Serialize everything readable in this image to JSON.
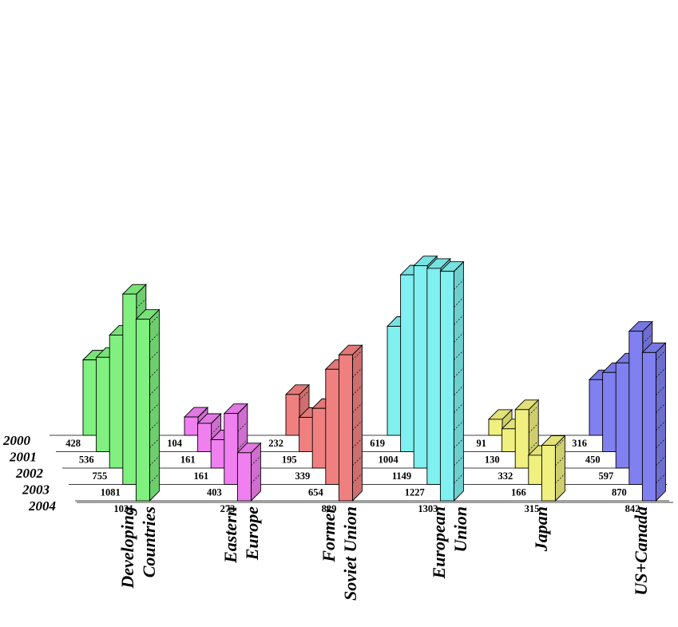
{
  "chart_data": {
    "type": "bar",
    "style": "3d-stacked-rows",
    "grid": true,
    "years": [
      "2000",
      "2001",
      "2002",
      "2003",
      "2004"
    ],
    "categories": [
      {
        "name": [
          "Developing",
          "Countries"
        ],
        "color": "#80f080",
        "values": [
          428,
          536,
          755,
          1081,
          1031
        ]
      },
      {
        "name": [
          "Eastern",
          "Europe"
        ],
        "color": "#f080f0",
        "values": [
          104,
          161,
          161,
          403,
          273
        ]
      },
      {
        "name": [
          "Former",
          "Soviet Union"
        ],
        "color": "#f08080",
        "values": [
          232,
          195,
          339,
          654,
          829
        ]
      },
      {
        "name": [
          "European",
          "Union"
        ],
        "color": "#80f0f0",
        "values": [
          619,
          1004,
          1149,
          1227,
          1303
        ]
      },
      {
        "name": [
          "Japan"
        ],
        "color": "#f0f080",
        "values": [
          91,
          130,
          332,
          166,
          315
        ]
      },
      {
        "name": [
          "US+Canada"
        ],
        "color": "#8080f0",
        "values": [
          316,
          450,
          597,
          870,
          842
        ]
      }
    ]
  }
}
